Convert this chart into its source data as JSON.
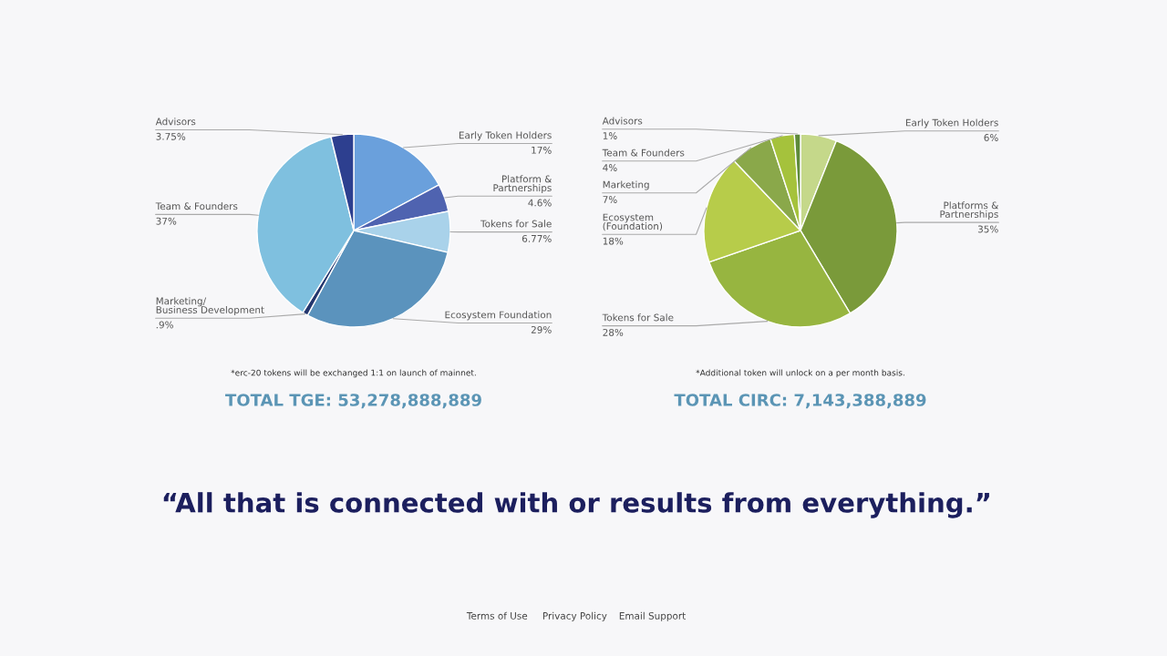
{
  "chart_data": [
    {
      "type": "pie",
      "title": "TOTAL TGE: 53,278,888,889",
      "categories": [
        "Early Token Holders",
        "Platform &\nPartnerships",
        "Tokens for Sale",
        "Ecosystem Foundation",
        "Marketing/\nBusiness Development",
        "Team & Founders",
        "Advisors"
      ],
      "values": [
        17,
        4.6,
        6.77,
        29,
        0.9,
        37,
        3.75
      ],
      "value_labels": [
        "17%",
        "4.6%",
        "6.77%",
        "29%",
        ".9%",
        "37%",
        "3.75%"
      ],
      "colors": [
        "#6aa0dc",
        "#4f63b0",
        "#a9d2ea",
        "#5b93bd",
        "#23366e",
        "#7fc0df",
        "#2d3f8f"
      ],
      "annotations": [
        "*erc-20 tokens will be exchanged 1:1 on launch of mainnet."
      ]
    },
    {
      "type": "pie",
      "title": "TOTAL CIRC: 7,143,388,889",
      "categories": [
        "Early Token Holders",
        "Platforms &\nPartnerships",
        "Tokens for Sale",
        "Ecosystem\n(Foundation)",
        "Marketing",
        "Team & Founders",
        "Advisors"
      ],
      "values": [
        6,
        35,
        28,
        18,
        7,
        4,
        1
      ],
      "value_labels": [
        "6%",
        "35%",
        "28%",
        "18%",
        "7%",
        "4%",
        "1%"
      ],
      "colors": [
        "#c5d88a",
        "#7a9a3a",
        "#97b540",
        "#b7cc4a",
        "#8aa84a",
        "#a5c23c",
        "#5d8a3a"
      ],
      "annotations": [
        "*Additional token will unlock on a per month basis."
      ]
    },
    {
      "type": "other",
      "annotations": [
        "“All that is connected with or results from everything.”",
        "Terms of Use",
        "Privacy Policy",
        "Email Support"
      ]
    }
  ]
}
